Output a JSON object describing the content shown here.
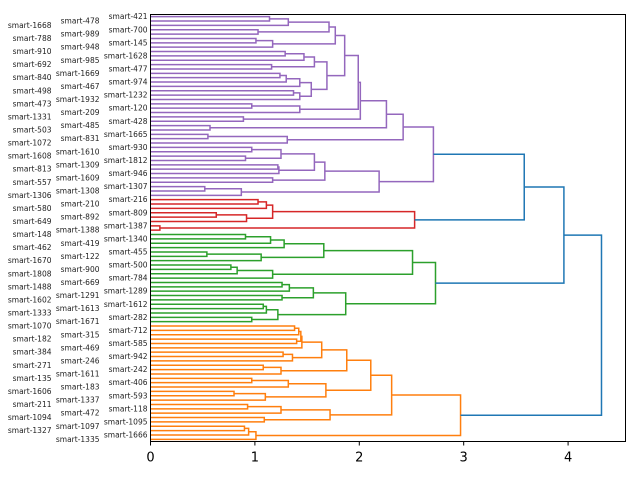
{
  "chart_data": {
    "type": "dendrogram",
    "orientation": "right",
    "title": "",
    "xlabel": "",
    "ylabel": "",
    "xlim": [
      0,
      4.55
    ],
    "xticks": [
      "0",
      "1",
      "2",
      "3",
      "4"
    ],
    "grid": false,
    "above_threshold_color": "#1f77b4",
    "root": [
      4.32,
      [
        3.96,
        [
          3.58,
          "c0",
          "c1"
        ],
        "c2"
      ],
      "c3"
    ],
    "clusters": {
      "c0": {
        "color": "#9467bd",
        "tree": [
          2.71,
          [
            2.42,
            [
              2.26,
              [
                2.01,
                [
                  1.99,
                  [
                    1.86,
                    [
                      1.77,
                      [
                        1.71,
                        [
                          1.32,
                          [
                            1.14,
                            "smart-421",
                            "smart-478"
                          ],
                          "smart-1668"
                        ],
                        [
                          1.03,
                          "smart-700",
                          "smart-989"
                        ]
                      ],
                      [
                        1.17,
                        [
                          1.01,
                          "smart-788",
                          "smart-145"
                        ],
                        "smart-948"
                      ]
                    ],
                    [
                      1.69,
                      [
                        1.57,
                        [
                          1.47,
                          [
                            1.29,
                            "smart-910",
                            "smart-1628"
                          ],
                          "smart-985"
                        ],
                        [
                          1.16,
                          "smart-692",
                          "smart-477"
                        ]
                      ],
                      [
                        1.54,
                        [
                          1.43,
                          [
                            1.3,
                            [
                              1.24,
                              "smart-1669",
                              "smart-840"
                            ],
                            "smart-974"
                          ],
                          "smart-467"
                        ],
                        [
                          1.43,
                          [
                            1.37,
                            "smart-498",
                            "smart-1232"
                          ],
                          "smart-1932"
                        ]
                      ]
                    ]
                  ],
                  [
                    1.43,
                    [
                      0.97,
                      "smart-473",
                      "smart-120"
                    ],
                    "smart-209"
                  ]
                ],
                [
                  0.89,
                  "smart-1331",
                  "smart-428"
                ]
              ],
              [
                0.57,
                "smart-485",
                "smart-503"
              ]
            ],
            [
              1.31,
              [
                0.55,
                "smart-1665",
                "smart-831"
              ],
              "smart-1072"
            ]
          ],
          [
            2.19,
            [
              1.67,
              [
                1.57,
                [
                  1.25,
                  [
                    0.97,
                    "smart-930",
                    "smart-1610"
                  ],
                  [
                    0.91,
                    "smart-1608",
                    "smart-1812"
                  ]
                ],
                [
                  1.23,
                  [
                    1.22,
                    "smart-1309",
                    "smart-813"
                  ],
                  "smart-946"
                ]
              ],
              [
                1.17,
                "smart-1609",
                "smart-557"
              ]
            ],
            [
              0.87,
              [
                0.52,
                "smart-1307",
                "smart-1308"
              ],
              "smart-1306"
            ]
          ]
        ]
      },
      "c1": {
        "color": "#d62728",
        "tree": [
          2.53,
          [
            1.17,
            [
              1.11,
              [
                1.03,
                "smart-216",
                "smart-210"
              ],
              "smart-580"
            ],
            [
              0.92,
              [
                0.63,
                "smart-809",
                "smart-892"
              ],
              "smart-649"
            ]
          ],
          [
            0.09,
            "smart-1387",
            "smart-1388"
          ]
        ]
      },
      "c2": {
        "color": "#2ca02c",
        "tree": [
          2.73,
          [
            2.51,
            [
              1.66,
              [
                1.28,
                [
                  1.15,
                  [
                    0.91,
                    "smart-148",
                    "smart-1340"
                  ],
                  "smart-419"
                ],
                "smart-462"
              ],
              [
                1.06,
                [
                  0.54,
                  "smart-455",
                  "smart-122"
                ],
                "smart-1670"
              ]
            ],
            [
              1.17,
              [
                0.83,
                [
                  0.77,
                  "smart-500",
                  "smart-900"
                ],
                "smart-1808"
              ],
              "smart-784"
            ]
          ],
          [
            1.87,
            [
              1.56,
              [
                1.33,
                [
                  1.26,
                  "smart-669",
                  "smart-1488"
                ],
                "smart-1289"
              ],
              [
                1.26,
                "smart-1291",
                "smart-1602"
              ]
            ],
            [
              1.22,
              [
                1.11,
                [
                  1.08,
                  "smart-1612",
                  "smart-1613"
                ],
                "smart-1333"
              ],
              [
                0.97,
                "smart-282",
                "smart-1671"
              ]
            ]
          ]
        ]
      },
      "c3": {
        "color": "#ff7f0e",
        "tree": [
          2.97,
          [
            2.31,
            [
              2.11,
              [
                1.88,
                [
                  1.64,
                  [
                    1.45,
                    [
                      1.44,
                      [
                        1.42,
                        [
                          1.38,
                          "smart-1070",
                          "smart-712"
                        ],
                        "smart-315"
                      ],
                      [
                        1.4,
                        "smart-182",
                        "smart-585"
                      ]
                    ],
                    "smart-469"
                  ],
                  [
                    1.36,
                    [
                      1.27,
                      "smart-384",
                      "smart-942"
                    ],
                    "smart-246"
                  ]
                ],
                [
                  1.25,
                  [
                    1.08,
                    "smart-271",
                    "smart-242"
                  ],
                  "smart-1611"
                ]
              ],
              [
                1.68,
                [
                  1.32,
                  [
                    0.97,
                    "smart-135",
                    "smart-406"
                  ],
                  "smart-183"
                ],
                [
                  1.1,
                  [
                    0.8,
                    "smart-1606",
                    "smart-593"
                  ],
                  "smart-1337"
                ]
              ]
            ],
            [
              1.72,
              [
                1.25,
                [
                  0.93,
                  "smart-211",
                  "smart-118"
                ],
                "smart-472"
              ],
              [
                1.09,
                "smart-1094",
                "smart-1095"
              ]
            ]
          ],
          [
            1.01,
            [
              0.94,
              [
                0.9,
                "smart-1097",
                "smart-1327"
              ],
              "smart-1666"
            ],
            "smart-1335"
          ]
        ]
      }
    }
  }
}
